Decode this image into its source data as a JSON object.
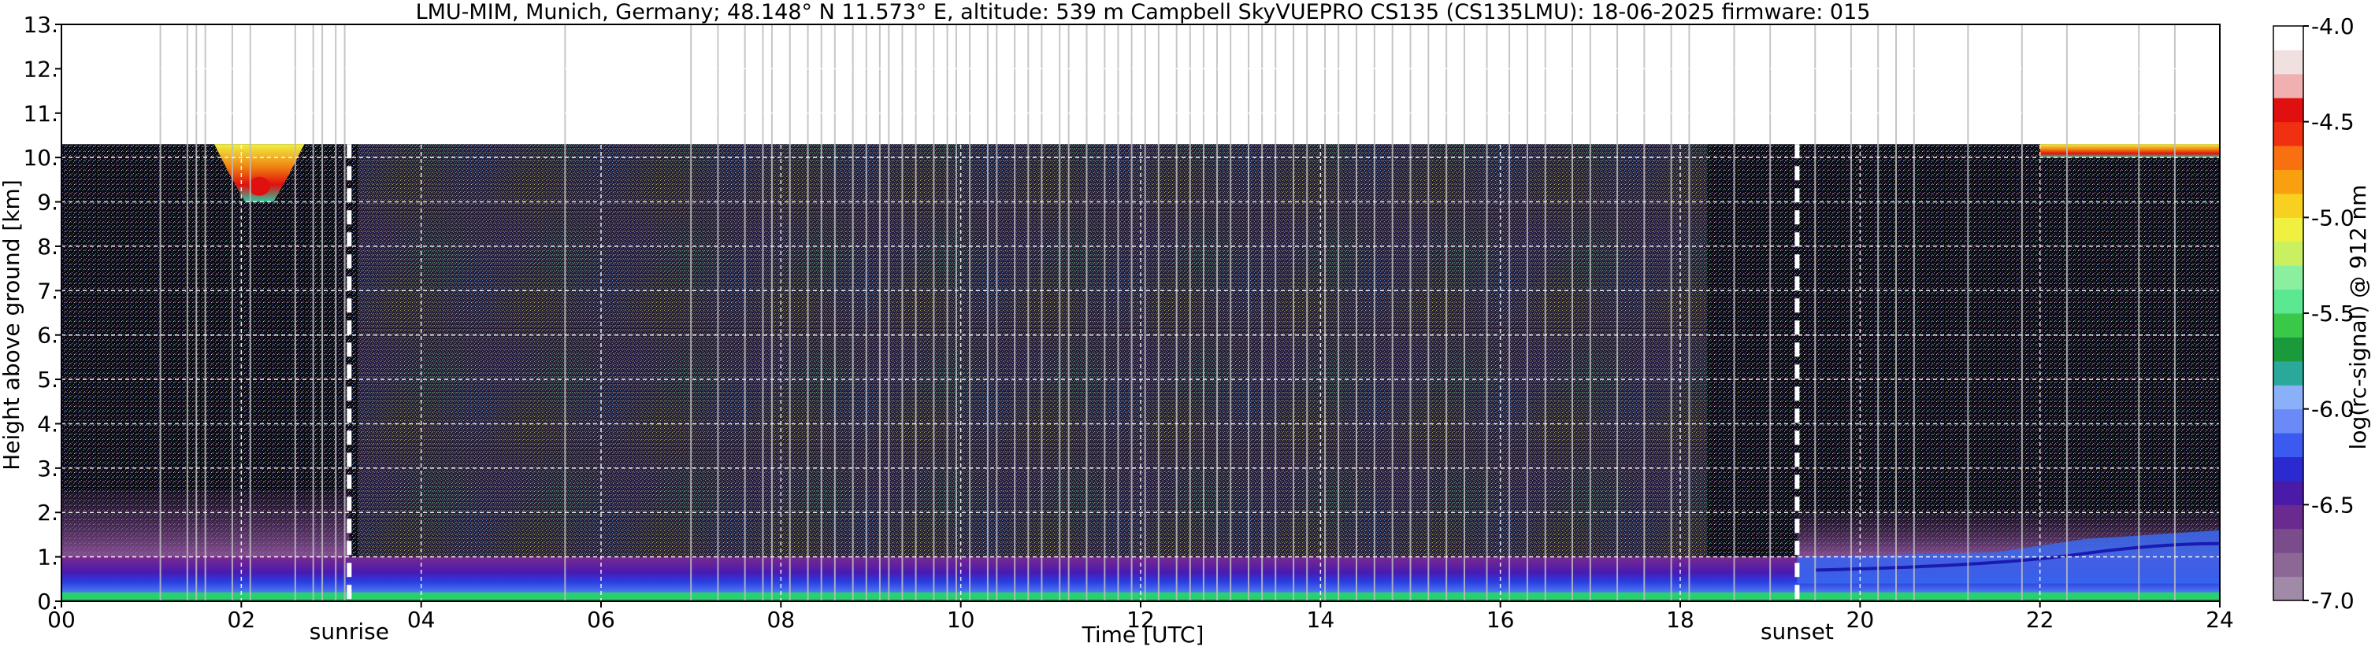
{
  "chart_data": {
    "type": "heatmap",
    "title": "LMU-MIM, Munich, Germany; 48.148° N 11.573° E, altitude: 539 m    Campbell SkyVUEPRO CS135 (CS135LMU): 18-06-2025    firmware: 015",
    "xlabel": "Time [UTC]",
    "ylabel": "Height above ground [km]",
    "xlim": [
      0,
      24
    ],
    "ylim": [
      0,
      13
    ],
    "x_ticks": [
      "00",
      "02",
      "04",
      "06",
      "08",
      "10",
      "12",
      "14",
      "16",
      "18",
      "20",
      "22",
      "24"
    ],
    "y_ticks": [
      "0.",
      "1.",
      "2.",
      "3.",
      "4.",
      "5.",
      "6.",
      "7.",
      "8.",
      "9.",
      "10.",
      "11.",
      "12.",
      "13."
    ],
    "grid": true,
    "data_top_km": 10.3,
    "annotations": [
      {
        "label": "sunrise",
        "time_utc": 3.2
      },
      {
        "label": "sunset",
        "time_utc": 19.3
      }
    ],
    "colorbar": {
      "label": "log(rc-signal) @ 912 nm",
      "range": [
        -7.0,
        -4.0
      ],
      "ticks": [
        "-4.0",
        "-4.5",
        "-5.0",
        "-5.5",
        "-6.0",
        "-6.5",
        "-7.0"
      ]
    },
    "features": [
      {
        "name": "high cloud",
        "start_utc": 1.7,
        "end_utc": 2.7,
        "base_km": 9.0,
        "top_km": 10.3,
        "log_signal": -4.8
      },
      {
        "name": "high cloud",
        "start_utc": 22.0,
        "end_utc": 24.0,
        "base_km": 10.0,
        "top_km": 10.3,
        "log_signal": -5.0
      },
      {
        "name": "boundary layer",
        "start_utc": 0.0,
        "end_utc": 24.0,
        "base_km": 0.0,
        "top_km": 1.0,
        "log_signal": -6.1
      }
    ]
  },
  "colors": {
    "background_signal": "#0a0a0a",
    "noise": "#6b4a8c",
    "colormap": [
      "#a08aa8",
      "#8c6896",
      "#7a4c8c",
      "#6a2a90",
      "#4a1aa8",
      "#2a2ad0",
      "#3a5af0",
      "#6a8af8",
      "#8ab0f8",
      "#2aa89a",
      "#1a9a3a",
      "#3ac848",
      "#5ae890",
      "#8af0a0",
      "#c8f060",
      "#f0f040",
      "#f8d020",
      "#f8a010",
      "#f87010",
      "#f03010",
      "#e01010",
      "#f0b0b0",
      "#f0e0e0",
      "#ffffff"
    ]
  }
}
